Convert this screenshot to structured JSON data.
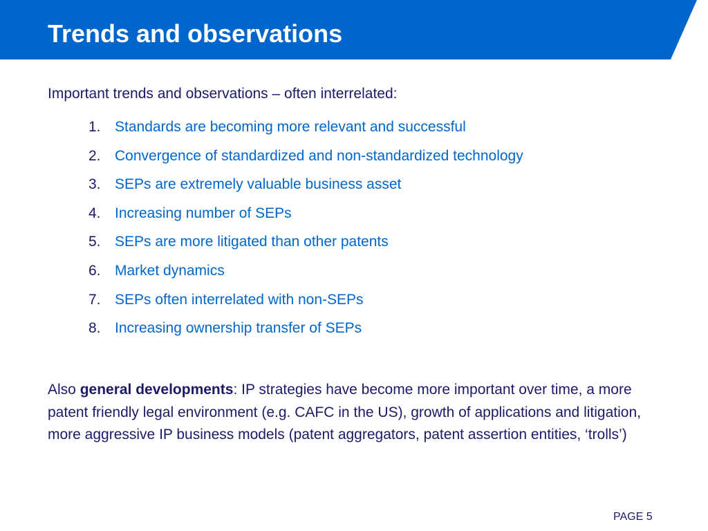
{
  "slide": {
    "title": "Trends and observations",
    "intro": "Important trends and observations – often interrelated:",
    "items": [
      {
        "num": "1.",
        "text": "Standards are becoming more relevant and successful"
      },
      {
        "num": "2.",
        "text": "Convergence of standardized and non-standardized technology"
      },
      {
        "num": "3.",
        "text": "SEPs are extremely valuable business asset"
      },
      {
        "num": "4.",
        "text": "Increasing number of SEPs"
      },
      {
        "num": "5.",
        "text": "SEPs are more litigated than other patents"
      },
      {
        "num": "6.",
        "text": "Market dynamics"
      },
      {
        "num": "7.",
        "text": "SEPs often interrelated with non-SEPs"
      },
      {
        "num": "8.",
        "text": "Increasing ownership transfer of SEPs"
      }
    ],
    "paragraph": {
      "prefix": "Also ",
      "bold": "general developments",
      "rest": ": IP strategies have become more important over time, a more patent friendly legal environment (e.g. CAFC in the US), growth of applications and litigation, more aggressive IP business models (patent aggregators, patent assertion entities, ‘trolls’)"
    },
    "page_label": "PAGE 5"
  },
  "colors": {
    "header_blue": "#0066cc",
    "list_blue": "#0066cc",
    "text_navy": "#1a1a66",
    "title_white": "#ffffff"
  }
}
